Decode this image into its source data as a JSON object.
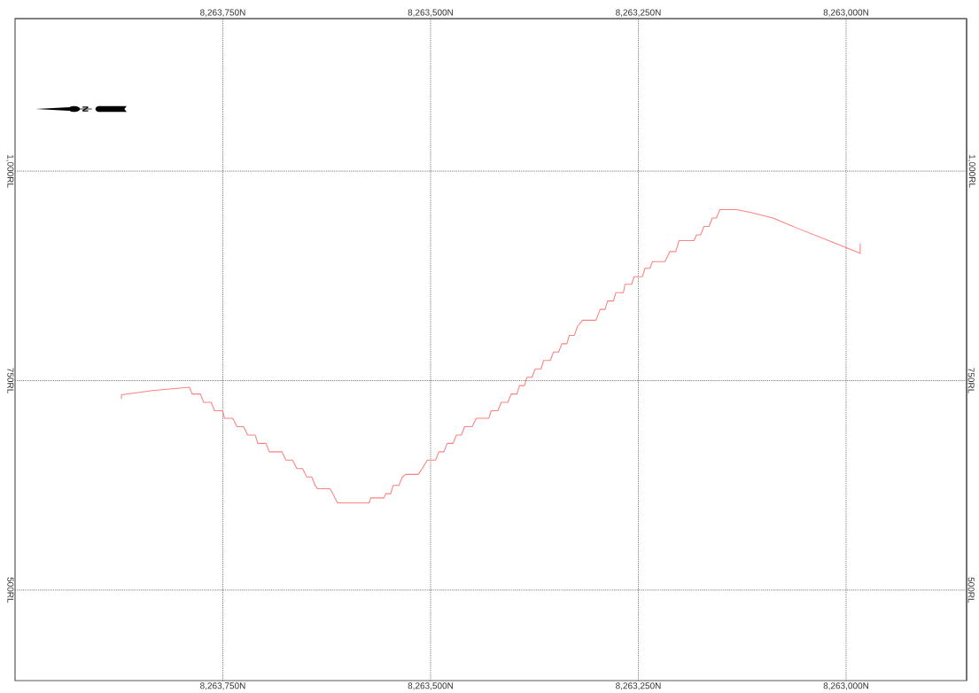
{
  "chart_data": {
    "type": "line",
    "series": [
      {
        "color": "#ff8080",
        "x": [
          8263872,
          8263872,
          8263835,
          8263790,
          8263787,
          8263777,
          8263773,
          8263764,
          8263760,
          8263750,
          8263748,
          8263738,
          8263733,
          8263725,
          8263720,
          8263711,
          8263708,
          8263698,
          8263694,
          8263679,
          8263674,
          8263666,
          8263661,
          8263654,
          8263649,
          8263643,
          8263639,
          8263636,
          8263621,
          8263618,
          8263612,
          8263574,
          8263572,
          8263556,
          8263554,
          8263548,
          8263545,
          8263538,
          8263534,
          8263530,
          8263515,
          8263510,
          8263504,
          8263494,
          8263490,
          8263484,
          8263480,
          8263473,
          8263469,
          8263463,
          8263459,
          8263450,
          8263445,
          8263430,
          8263427,
          8263419,
          8263415,
          8263407,
          8263403,
          8263396,
          8263393,
          8263387,
          8263384,
          8263378,
          8263374,
          8263367,
          8263364,
          8263356,
          8263352,
          8263346,
          8263342,
          8263336,
          8263333,
          8263327,
          8263323,
          8263317,
          8263301,
          8263296,
          8263290,
          8263287,
          8263280,
          8263277,
          8263268,
          8263266,
          8263258,
          8263255,
          8263245,
          8263242,
          8263236,
          8263233,
          8263218,
          8263212,
          8263205,
          8263201,
          8263183,
          8263180,
          8263175,
          8263171,
          8263165,
          8263161,
          8263156,
          8263152,
          8263132,
          8263116,
          8263088,
          8263059,
          8263031,
          8263003,
          8262983,
          8262983
        ],
        "values": [
          728,
          733,
          738,
          742,
          734,
          734,
          724,
          724,
          714,
          714,
          705,
          705,
          695,
          695,
          685,
          685,
          675,
          675,
          665,
          665,
          655,
          655,
          645,
          645,
          635,
          635,
          625,
          621,
          621,
          616,
          604,
          604,
          610,
          610,
          615,
          615,
          625,
          625,
          635,
          638,
          638,
          645,
          655,
          655,
          665,
          665,
          675,
          675,
          685,
          685,
          695,
          695,
          705,
          705,
          714,
          714,
          724,
          724,
          734,
          734,
          744,
          744,
          754,
          754,
          764,
          764,
          774,
          774,
          784,
          784,
          794,
          794,
          804,
          804,
          815,
          822,
          822,
          835,
          835,
          845,
          845,
          855,
          855,
          865,
          865,
          874,
          874,
          884,
          884,
          892,
          892,
          904,
          904,
          917,
          917,
          924,
          924,
          934,
          934,
          944,
          944,
          954,
          954,
          951,
          944,
          932,
          921,
          910,
          902,
          914
        ]
      }
    ],
    "xlim": [
      8264000,
      8262855
    ],
    "xticks": [
      {
        "value": 8263750,
        "label": "8,263,750N"
      },
      {
        "value": 8263500,
        "label": "8,263,500N"
      },
      {
        "value": 8263250,
        "label": "8,263,250N"
      },
      {
        "value": 8263000,
        "label": "8,263,000N"
      }
    ],
    "x2lim": [
      8264000,
      8262855
    ],
    "x2ticks": [
      {
        "value": 8263750,
        "label": "8,263,750N"
      },
      {
        "value": 8263500,
        "label": "8,263,500N"
      },
      {
        "value": 8263250,
        "label": "8,263,250N"
      },
      {
        "value": 8263000,
        "label": "8,263,000N"
      }
    ],
    "ylim": [
      392,
      1182
    ],
    "yticks": [
      {
        "value": 500,
        "label": "500RL"
      },
      {
        "value": 750,
        "label": "750RL"
      },
      {
        "value": 1000,
        "label": "1,000RL"
      }
    ],
    "y2lim": [
      392,
      1182
    ],
    "y2ticks": [
      {
        "value": 500,
        "label": "500RL"
      },
      {
        "value": 750,
        "label": "750RL"
      },
      {
        "value": 1000,
        "label": "1,000RL"
      }
    ],
    "grid": true,
    "annotations": [
      "N"
    ]
  }
}
